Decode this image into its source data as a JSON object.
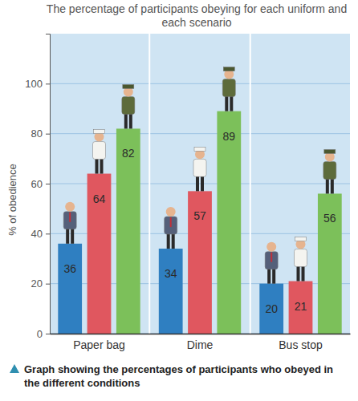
{
  "chart_data": {
    "type": "bar",
    "title": "The percentage of participants obeying for each uniform and each scenario",
    "y_label": "% of obedience",
    "caption": "Graph showing the percentages of participants who obeyed in the different conditions",
    "categories": [
      "Paper bag",
      "Dime",
      "Bus stop"
    ],
    "series": [
      {
        "color": "#2f7fc1",
        "values": [
          36,
          34,
          20
        ]
      },
      {
        "color": "#e0575f",
        "values": [
          64,
          57,
          21
        ]
      },
      {
        "color": "#7cc05a",
        "values": [
          82,
          89,
          56
        ]
      }
    ],
    "ylim": [
      0,
      120
    ],
    "yticks": [
      0,
      20,
      40,
      60,
      80,
      100
    ],
    "grid": true,
    "data_labels": true
  }
}
